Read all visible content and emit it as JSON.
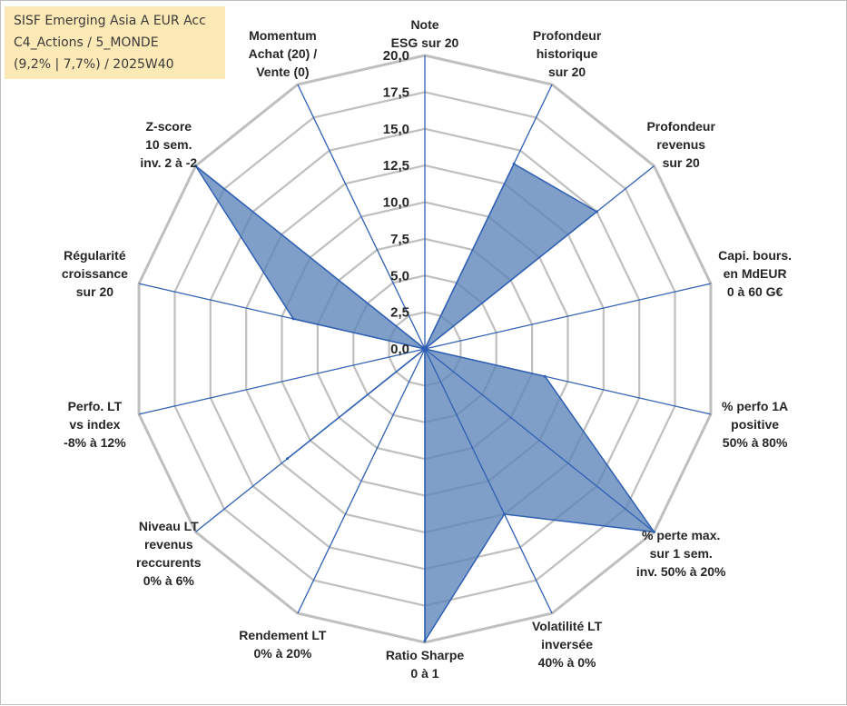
{
  "header": {
    "fund_name": "SISF Emerging Asia A EUR Acc",
    "category": "C4_Actions / 5_MONDE",
    "stats": "(9,2% | 7,7%) / 2025W40"
  },
  "colors": {
    "fill": "#5b84b9",
    "fill_opacity": 0.78,
    "spoke": "#2f5fb3",
    "grid": "#bfbfbf",
    "title_bg": "#fde9b6"
  },
  "chart_data": {
    "type": "radar",
    "rmin": 0,
    "rmax": 20,
    "ticks": [
      "0,0",
      "2,5",
      "5,0",
      "7,5",
      "10,0",
      "12,5",
      "15,0",
      "17,5",
      "20,0"
    ],
    "axes": [
      {
        "label": [
          "Note",
          "ESG sur 20"
        ],
        "value": 0
      },
      {
        "label": [
          "Profondeur",
          "historique",
          "sur 20"
        ],
        "value": 14
      },
      {
        "label": [
          "Profondeur",
          "revenus",
          "sur 20"
        ],
        "value": 15
      },
      {
        "label": [
          "Capi. bours.",
          "en MdEUR",
          "0 à 60 G€"
        ],
        "value": 0
      },
      {
        "label": [
          "% perfo 1A",
          "positive",
          "50% à 80%"
        ],
        "value": 8.4
      },
      {
        "label": [
          "% perte max.",
          "sur 1 sem.",
          "inv. 50% à 20%"
        ],
        "value": 20
      },
      {
        "label": [
          "Volatilité LT",
          "inversée",
          "40% à 0%"
        ],
        "value": 12.5
      },
      {
        "label": [
          "Ratio Sharpe",
          "0 à 1"
        ],
        "value": 19.9
      },
      {
        "label": [
          "Rendement LT",
          "0% à 20%"
        ],
        "value": 0
      },
      {
        "label": [
          "Niveau LT",
          "revenus",
          "reccurents",
          "0% à 6%"
        ],
        "value": 12
      },
      {
        "label": [
          "Perfo. LT",
          "vs index",
          "-8% à 12%"
        ],
        "value": 0
      },
      {
        "label": [
          "Régularité",
          "croissance",
          "sur 20"
        ],
        "value": 9.2
      },
      {
        "label": [
          "Z-score",
          "10 sem.",
          "inv. 2 à -2"
        ],
        "value": 20
      },
      {
        "label": [
          "Momentum",
          "Achat (20) /",
          "Vente (0)"
        ],
        "value": 0
      }
    ]
  }
}
